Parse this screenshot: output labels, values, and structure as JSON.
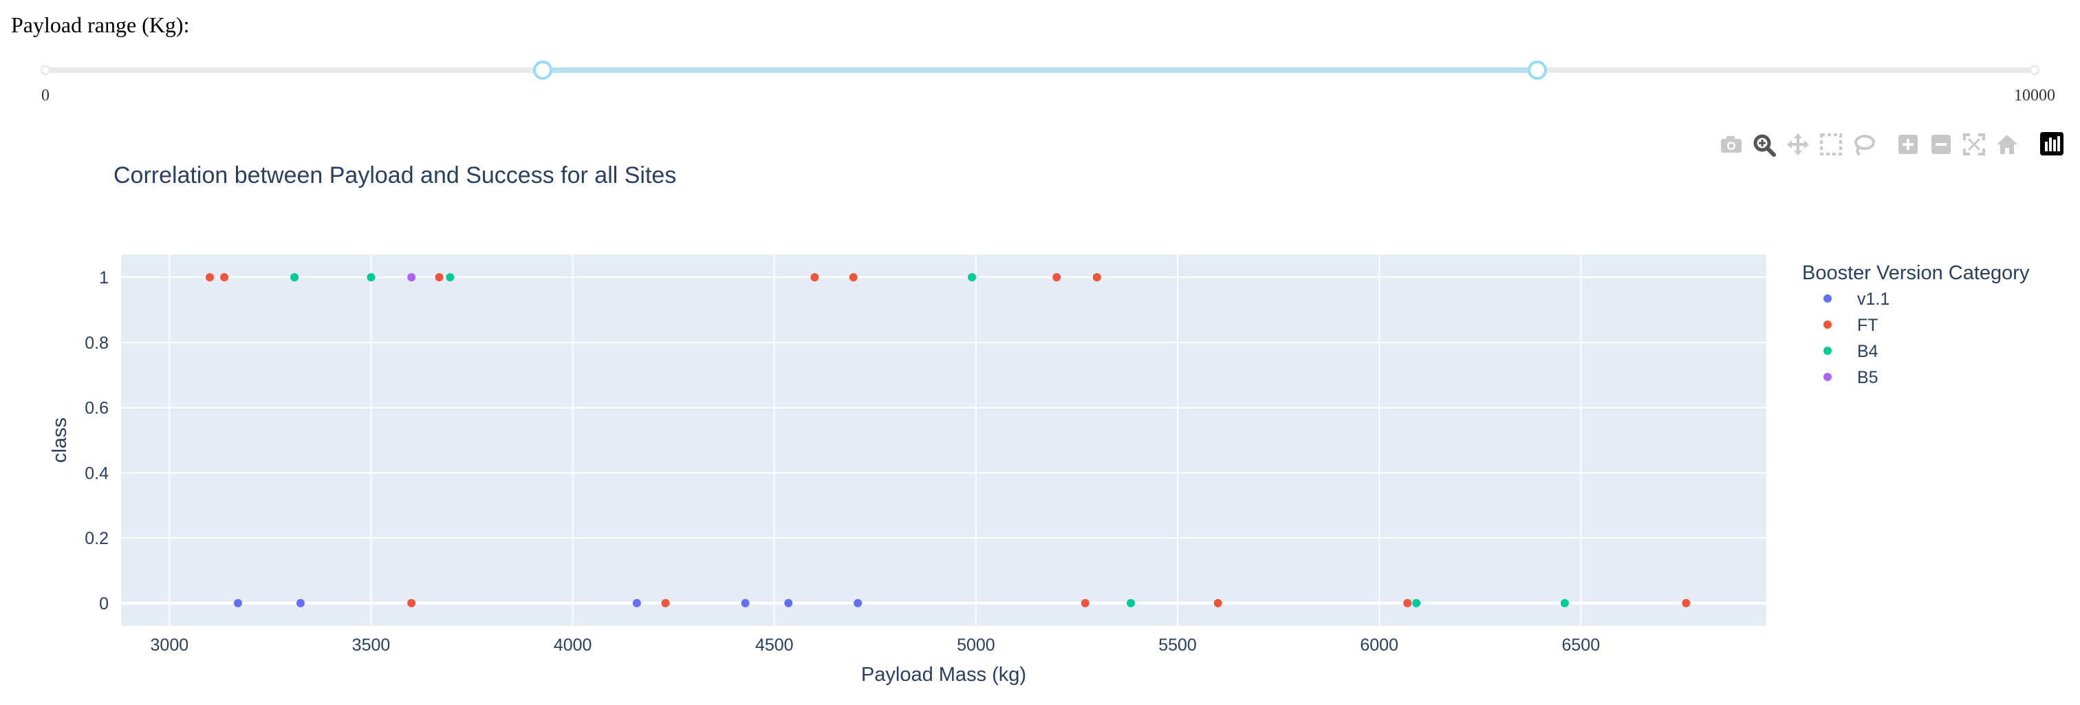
{
  "slider": {
    "label": "Payload range (Kg):",
    "min": 0,
    "max": 10000,
    "min_label": "0",
    "max_label": "10000",
    "value_low": 2500,
    "value_high": 7500,
    "track_color": "#e9e9e9",
    "active_color": "#b7dff2",
    "handle_color": "#96dbfa"
  },
  "modebar": {
    "buttons": [
      {
        "icon": "camera-icon",
        "active": false
      },
      {
        "icon": "zoom-icon",
        "active": true
      },
      {
        "icon": "pan-icon",
        "active": false
      },
      {
        "icon": "box-select-icon",
        "active": false
      },
      {
        "icon": "lasso-select-icon",
        "active": false
      },
      {
        "icon": "zoom-in-icon",
        "active": false
      },
      {
        "icon": "zoom-out-icon",
        "active": false
      },
      {
        "icon": "autoscale-icon",
        "active": false
      },
      {
        "icon": "reset-axes-icon",
        "active": false
      },
      {
        "icon": "plotly-logo-icon",
        "active": false
      }
    ]
  },
  "chart_data": {
    "type": "scatter",
    "title": "Correlation between Payload and Success for all Sites",
    "xlabel": "Payload Mass (kg)",
    "ylabel": "class",
    "xlim": [
      2880,
      6960
    ],
    "ylim": [
      -0.07,
      1.07
    ],
    "x_ticks": [
      3000,
      3500,
      4000,
      4500,
      5000,
      5500,
      6000,
      6500
    ],
    "x_tick_labels": [
      "3000",
      "3500",
      "4000",
      "4500",
      "5000",
      "5500",
      "6000",
      "6500"
    ],
    "y_ticks": [
      0,
      0.2,
      0.4,
      0.6,
      0.8,
      1
    ],
    "y_tick_labels": [
      "0",
      "0.2",
      "0.4",
      "0.6",
      "0.8",
      "1"
    ],
    "grid": true,
    "plot_bgcolor": "#e5ecf6",
    "legend": {
      "title": "Booster Version Category",
      "placement": "right"
    },
    "series": [
      {
        "name": "v1.1",
        "color": "#636efa",
        "points": [
          [
            3170,
            0
          ],
          [
            3325,
            0
          ],
          [
            4159,
            0
          ],
          [
            4428,
            0
          ],
          [
            4535,
            0
          ],
          [
            4707,
            0
          ]
        ]
      },
      {
        "name": "FT",
        "color": "#ef553b",
        "points": [
          [
            3100,
            1
          ],
          [
            3136,
            1
          ],
          [
            3669,
            1
          ],
          [
            4600,
            1
          ],
          [
            4696,
            1
          ],
          [
            5200,
            1
          ],
          [
            5300,
            1
          ],
          [
            3600,
            0
          ],
          [
            4230,
            0
          ],
          [
            5271,
            0
          ],
          [
            5600,
            0
          ],
          [
            6070,
            0
          ],
          [
            6761,
            0
          ]
        ]
      },
      {
        "name": "B4",
        "color": "#00cc96",
        "points": [
          [
            3310,
            1
          ],
          [
            3500,
            1
          ],
          [
            3696,
            1
          ],
          [
            4990,
            1
          ],
          [
            5384,
            0
          ],
          [
            6092,
            0
          ],
          [
            6460,
            0
          ]
        ]
      },
      {
        "name": "B5",
        "color": "#ab63fa",
        "points": [
          [
            3600,
            1
          ]
        ]
      }
    ]
  }
}
